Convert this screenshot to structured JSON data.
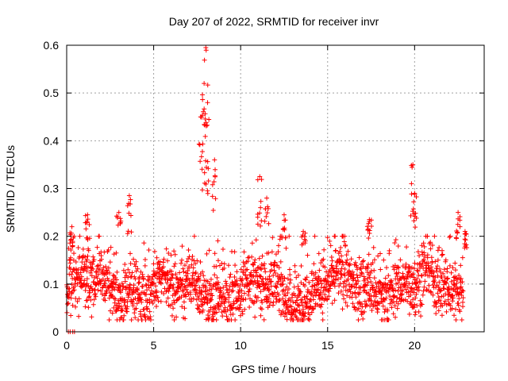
{
  "chart_data": {
    "type": "scatter",
    "title": "Day 207 of 2022, SRMTID for receiver invr",
    "xlabel": "GPS time / hours",
    "ylabel": "SRMTID / TECUs",
    "xlim": [
      0,
      24
    ],
    "ylim": [
      0,
      0.6
    ],
    "xticks": [
      0,
      5,
      10,
      15,
      20
    ],
    "yticks": [
      0,
      0.1,
      0.2,
      0.3,
      0.4,
      0.5,
      0.6
    ],
    "xtick_labels": [
      "0",
      "5",
      "10",
      "15",
      "20"
    ],
    "ytick_labels": [
      "0",
      "0.1",
      "0.2",
      "0.3",
      "0.4",
      "0.5",
      "0.6"
    ],
    "grid": true,
    "marker": "+",
    "color": "#ff0000",
    "series": [
      {
        "name": "SRMTID",
        "description": "Approximately 2000 '+' samples across 0-22.8 h, baseline mostly 0.04-0.18 TECU",
        "baseline_range": [
          0.03,
          0.2
        ],
        "peaks": [
          {
            "x": 0.3,
            "y": 0.22
          },
          {
            "x": 1.2,
            "y": 0.245
          },
          {
            "x": 3.0,
            "y": 0.25
          },
          {
            "x": 3.6,
            "y": 0.285
          },
          {
            "x": 7.7,
            "y": 0.45
          },
          {
            "x": 7.9,
            "y": 0.52
          },
          {
            "x": 8.0,
            "y": 0.595
          },
          {
            "x": 8.1,
            "y": 0.48
          },
          {
            "x": 8.5,
            "y": 0.36
          },
          {
            "x": 11.1,
            "y": 0.325
          },
          {
            "x": 11.5,
            "y": 0.28
          },
          {
            "x": 12.5,
            "y": 0.245
          },
          {
            "x": 13.6,
            "y": 0.21
          },
          {
            "x": 17.4,
            "y": 0.235
          },
          {
            "x": 19.9,
            "y": 0.35
          },
          {
            "x": 20.0,
            "y": 0.29
          },
          {
            "x": 22.5,
            "y": 0.25
          },
          {
            "x": 22.9,
            "y": 0.21
          }
        ],
        "zeros": [
          {
            "x": 0.1,
            "y": 0.0
          },
          {
            "x": 0.2,
            "y": 0.0
          },
          {
            "x": 0.35,
            "y": 0.0
          },
          {
            "x": 0.45,
            "y": 0.0
          }
        ]
      }
    ]
  }
}
